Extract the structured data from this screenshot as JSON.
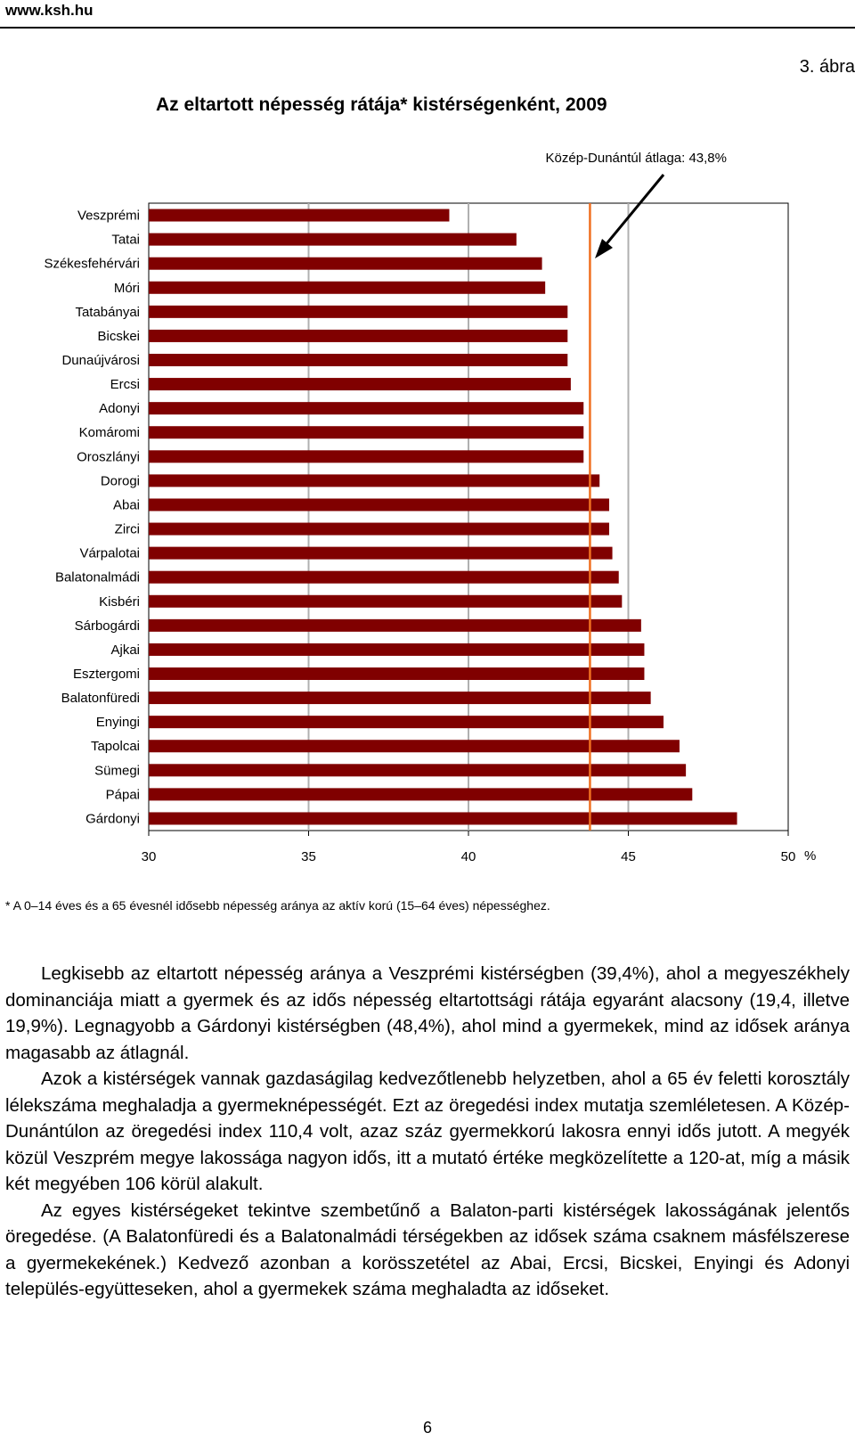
{
  "header": {
    "site": "www.ksh.hu",
    "figure_no": "3. ábra"
  },
  "chart_data": {
    "type": "bar",
    "orientation": "horizontal",
    "title": "Az eltartott népesség rátája* kistérségenként, 2009",
    "categories": [
      "Veszprémi",
      "Tatai",
      "Székesfehérvári",
      "Móri",
      "Tatabányai",
      "Bicskei",
      "Dunaújvárosi",
      "Ercsi",
      "Adonyi",
      "Komáromi",
      "Oroszlányi",
      "Dorogi",
      "Abai",
      "Zirci",
      "Várpalotai",
      "Balatonalmádi",
      "Kisbéri",
      "Sárbogárdi",
      "Ajkai",
      "Esztergomi",
      "Balatonfüredi",
      "Enyingi",
      "Tapolcai",
      "Sümegi",
      "Pápai",
      "Gárdonyi"
    ],
    "values": [
      39.4,
      41.5,
      42.3,
      42.4,
      43.1,
      43.1,
      43.1,
      43.2,
      43.6,
      43.6,
      43.6,
      44.1,
      44.4,
      44.4,
      44.5,
      44.7,
      44.8,
      45.4,
      45.5,
      45.5,
      45.7,
      46.1,
      46.6,
      46.8,
      47.0,
      48.4
    ],
    "xlim": [
      30,
      50
    ],
    "xticks": [
      "30",
      "35",
      "40",
      "45",
      "50"
    ],
    "xunit": "%",
    "reference_line": {
      "value": 43.8,
      "label": "Közép-Dunántúl átlaga: 43,8%",
      "color": "#f07020"
    },
    "bar_color": "#800000",
    "grid": "vertical gridlines at major ticks"
  },
  "footnote": "* A 0–14 éves és a 65 évesnél idősebb népesség aránya az aktív korú (15–64 éves) népességhez.",
  "paragraphs": [
    "Legkisebb az eltartott népesség aránya a Veszprémi kistérségben (39,4%), ahol a megyeszékhely dominanciája miatt a gyermek és az idős népesség eltartottsági rátája egyaránt alacsony (19,4, illetve 19,9%). Legnagyobb a Gárdonyi kistérségben (48,4%), ahol mind a gyermekek, mind az idősek aránya magasabb az átlagnál.",
    "Azok a kistérségek vannak gazdaságilag kedvezőtlenebb helyzetben, ahol a 65 év feletti korosztály lélekszáma meghaladja a gyermeknépességét. Ezt az öregedési index mutatja szemléletesen. A Közép-Dunántúlon az öregedési index 110,4 volt, azaz száz gyermekkorú lakosra ennyi idős jutott. A megyék közül Veszprém megye lakossága nagyon idős, itt a mutató értéke megközelítette a 120-at, míg a másik két megyében 106 körül alakult.",
    "Az egyes kistérségeket tekintve szembetűnő a Balaton-parti kistérségek lakosságának jelentős öregedése. (A Balatonfüredi és a Balatonalmádi térségekben az idősek száma csaknem másfélszerese a gyermekekének.) Kedvező azonban a korösszetétel az Abai, Ercsi, Bicskei, Enyingi és Adonyi település-együtteseken, ahol a gyermekek száma meghaladta az időseket."
  ],
  "page_number": "6"
}
